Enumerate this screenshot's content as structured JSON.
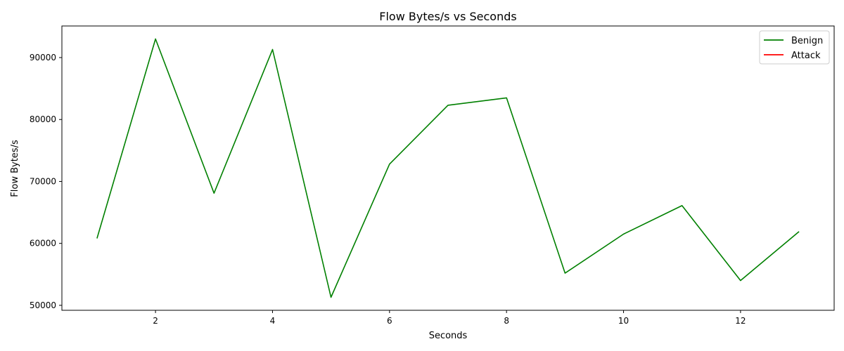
{
  "chart_data": {
    "type": "line",
    "title": "Flow Bytes/s vs Seconds",
    "xlabel": "Seconds",
    "ylabel": "Flow Bytes/s",
    "xlim": [
      0.4,
      13.6
    ],
    "ylim": [
      49200,
      95100
    ],
    "xticks": [
      2,
      4,
      6,
      8,
      10,
      12
    ],
    "yticks": [
      50000,
      60000,
      70000,
      80000,
      90000
    ],
    "grid": false,
    "legend_position": "top-right",
    "series": [
      {
        "name": "Benign",
        "color": "#008000",
        "x": [
          1,
          2,
          3,
          4,
          5,
          6,
          7,
          8,
          9,
          10,
          11,
          12,
          13
        ],
        "y": [
          60800,
          93000,
          68100,
          91300,
          51300,
          72800,
          82300,
          83500,
          55200,
          61500,
          66100,
          54000,
          61900
        ]
      },
      {
        "name": "Attack",
        "color": "#ff0000",
        "x": [],
        "y": []
      }
    ]
  }
}
